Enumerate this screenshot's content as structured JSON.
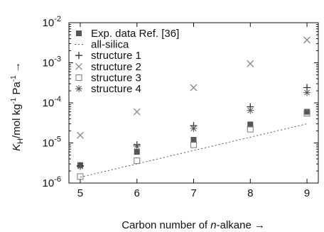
{
  "chart_data": {
    "type": "scatter",
    "xlabel_main": "Carbon number of ",
    "xlabel_italic": "n",
    "xlabel_tail": "-alkane",
    "xlabel_arrow": "→",
    "ylabel": {
      "k": "K",
      "sub": "H",
      "unit": "/mol kg",
      "exp1": "-1",
      "pa": " Pa",
      "exp2": "-1",
      "arrow": " →"
    },
    "x_ticks": [
      {
        "value": 5,
        "label": "5"
      },
      {
        "value": 6,
        "label": "6"
      },
      {
        "value": 7,
        "label": "7"
      },
      {
        "value": 8,
        "label": "8"
      },
      {
        "value": 9,
        "label": "9"
      }
    ],
    "y_ticks": [
      {
        "value": 1e-06,
        "base": "10",
        "exp": "-6"
      },
      {
        "value": 1e-05,
        "base": "10",
        "exp": "-5"
      },
      {
        "value": 0.0001,
        "base": "10",
        "exp": "-4"
      },
      {
        "value": 0.001,
        "base": "10",
        "exp": "-3"
      },
      {
        "value": 0.01,
        "base": "10",
        "exp": "-2"
      }
    ],
    "xlim": [
      4.8,
      9.2
    ],
    "ylim": [
      1e-06,
      0.01
    ],
    "y_scale": "log",
    "grid": false,
    "legend_position": "top-left",
    "series": [
      {
        "name": "Exp. data Ref. [36]",
        "marker": "filled-square",
        "color": "#555555",
        "x": [
          5,
          6,
          7,
          8,
          9
        ],
        "y": [
          2.8e-06,
          6e-06,
          1.2e-05,
          2.9e-05,
          6e-05
        ]
      },
      {
        "name": "all-silica",
        "marker": "dotted-line",
        "color": "#555555",
        "x": [
          5,
          9
        ],
        "y": [
          1.4e-06,
          3e-05
        ]
      },
      {
        "name": "structure 1",
        "marker": "plus",
        "color": "#333333",
        "x": [
          5,
          6,
          7,
          8,
          9
        ],
        "y": [
          2.7e-06,
          9e-06,
          2.7e-05,
          8e-05,
          0.00024
        ]
      },
      {
        "name": "structure 2",
        "marker": "cross",
        "color": "#888888",
        "x": [
          5,
          6,
          7,
          8,
          9
        ],
        "y": [
          1.55e-05,
          6e-05,
          0.00024,
          0.00095,
          0.0037
        ]
      },
      {
        "name": "structure 3",
        "marker": "open-square",
        "color": "#777777",
        "x": [
          5,
          6,
          7,
          8,
          9
        ],
        "y": [
          1.45e-06,
          3.6e-06,
          9e-06,
          2.2e-05,
          5.5e-05
        ]
      },
      {
        "name": "structure 4",
        "marker": "asterisk",
        "color": "#555555",
        "x": [
          5,
          6,
          7,
          8,
          9
        ],
        "y": [
          2.6e-06,
          8.3e-06,
          2.3e-05,
          6.5e-05,
          0.00018
        ]
      }
    ]
  }
}
